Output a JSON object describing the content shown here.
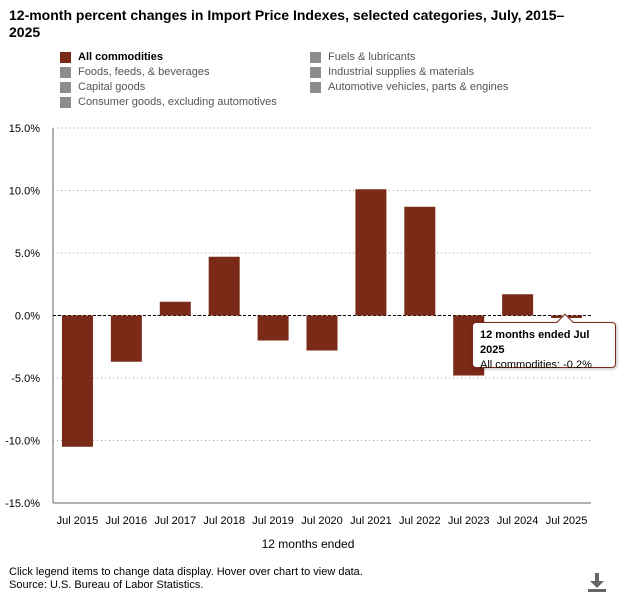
{
  "title": "12-month percent changes in Import Price Indexes, selected categories, July, 2015–2025",
  "legend": [
    {
      "label": "All commodities",
      "active": true,
      "color": "#7a2a16"
    },
    {
      "label": "Foods, feeds, & beverages",
      "active": false,
      "color": "#8c8c8c"
    },
    {
      "label": "Capital goods",
      "active": false,
      "color": "#8c8c8c"
    },
    {
      "label": "Consumer goods, excluding automotives",
      "active": false,
      "color": "#8c8c8c"
    },
    {
      "label": "Fuels & lubricants",
      "active": false,
      "color": "#8c8c8c"
    },
    {
      "label": "Industrial supplies & materials",
      "active": false,
      "color": "#8c8c8c"
    },
    {
      "label": "Automotive vehicles, parts & engines",
      "active": false,
      "color": "#8c8c8c"
    }
  ],
  "chart_data": {
    "type": "bar",
    "title": "12-month percent changes in Import Price Indexes, selected categories, July, 2015–2025",
    "xlabel": "12 months ended",
    "ylabel": "",
    "ylim": [
      -15,
      15
    ],
    "yticks": [
      15,
      10,
      5,
      0,
      -5,
      -10,
      -15
    ],
    "ytick_labels": [
      "15.0%",
      "10.0%",
      "5.0%",
      "0.0%",
      "-5.0%",
      "-10.0%",
      "-15.0%"
    ],
    "grid": "dotted horizontal",
    "categories": [
      "Jul 2015",
      "Jul 2016",
      "Jul 2017",
      "Jul 2018",
      "Jul 2019",
      "Jul 2020",
      "Jul 2021",
      "Jul 2022",
      "Jul 2023",
      "Jul 2024",
      "Jul 2025"
    ],
    "series": [
      {
        "name": "All commodities",
        "color": "#7a2a16",
        "values": [
          -10.5,
          -3.7,
          1.1,
          4.7,
          -2.0,
          -2.8,
          10.1,
          8.7,
          -4.8,
          1.7,
          -0.2
        ]
      }
    ]
  },
  "tooltip": {
    "title": "12 months ended Jul 2025",
    "body": "All commodities: -0.2%"
  },
  "footnote": {
    "line1": "Click legend items to change data display. Hover over chart to view data.",
    "line2": "Source: U.S. Bureau of Labor Statistics."
  },
  "icons": {
    "download": "download-icon"
  }
}
